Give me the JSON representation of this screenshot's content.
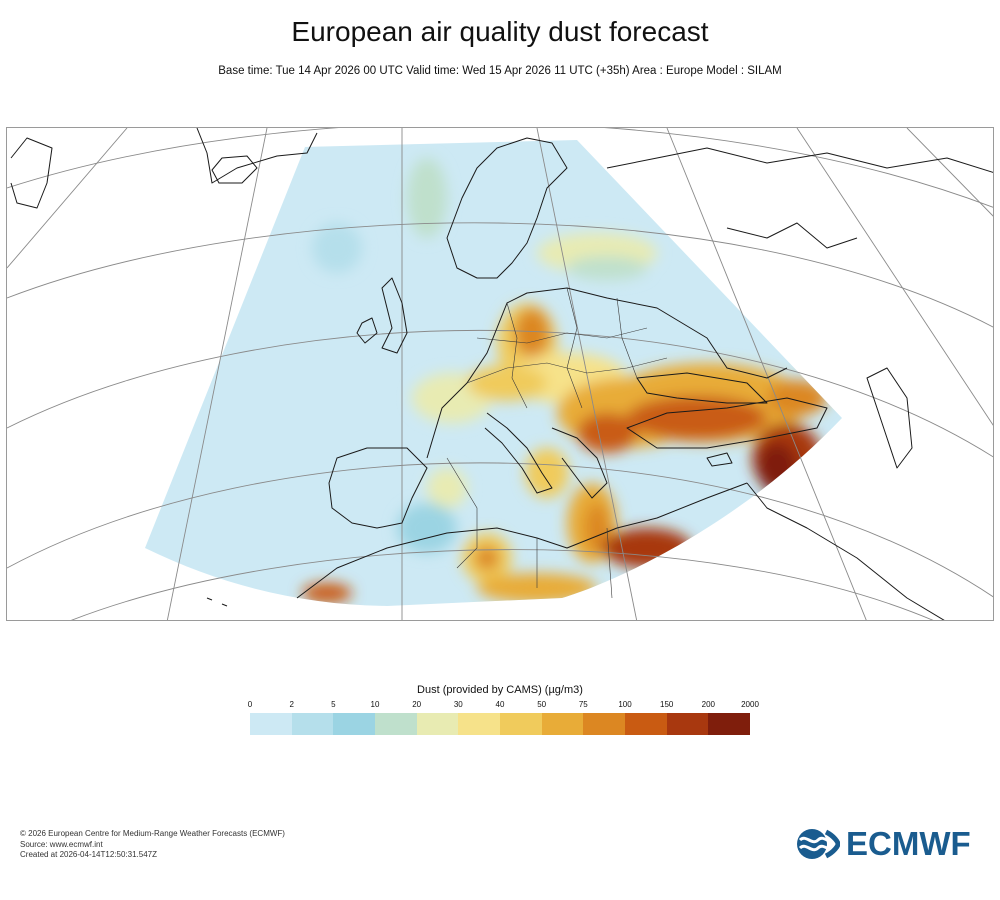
{
  "title": "European air quality dust forecast",
  "subtitle": "Base time: Tue 14 Apr 2026 00 UTC Valid time: Wed 15 Apr 2026 11 UTC (+35h) Area : Europe Model : SILAM",
  "legend": {
    "title": "Dust (provided by CAMS) (µg/m3)",
    "ticks": [
      "0",
      "2",
      "5",
      "10",
      "20",
      "30",
      "40",
      "50",
      "75",
      "100",
      "150",
      "200",
      "2000"
    ],
    "colors": [
      "#cde9f4",
      "#b5dfeb",
      "#9bd4e3",
      "#bfe0cc",
      "#e8ebb2",
      "#f6e28a",
      "#f0cb5c",
      "#e8ac38",
      "#dc8722",
      "#c95b12",
      "#a8380f",
      "#7f1e0c"
    ]
  },
  "colors": {
    "land_line": "#1a1a1a",
    "grid_line": "#8a8a8a",
    "title_text": "#111111",
    "logo_blue": "#1a5c8f"
  },
  "footer": {
    "line1": "© 2026 European Centre for Medium-Range Weather Forecasts (ECMWF)",
    "line2": "Source: www.ecmwf.int",
    "line3": "Created at 2026-04-14T12:50:31.547Z"
  },
  "logo": {
    "text": "ECMWF",
    "icon": "ecmwf-logo-icon"
  }
}
